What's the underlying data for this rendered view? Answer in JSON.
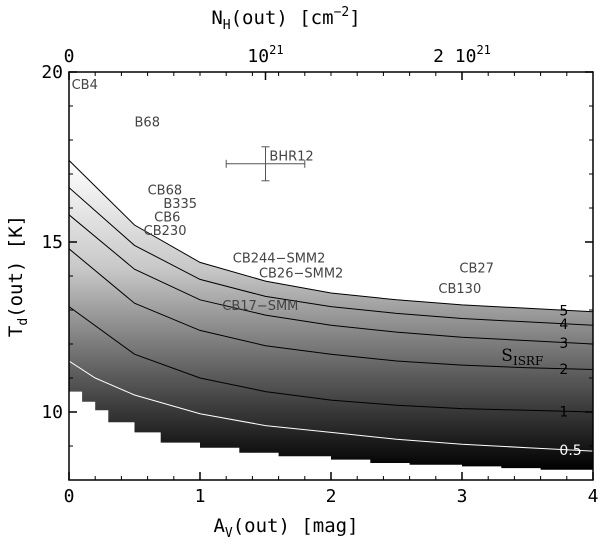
{
  "chart_data": {
    "type": "contour",
    "title": "",
    "xlabel": "A",
    "xlabel_sub": "V",
    "xlabel_rest": "(out) [mag]",
    "ylabel": "T",
    "ylabel_sub": "d",
    "ylabel_rest": "(out) [K]",
    "top_xlabel": "N",
    "top_xlabel_sub": "H",
    "top_xlabel_rest": "(out) [cm",
    "top_xlabel_sup": "−2",
    "top_xlabel_end": "]",
    "xlim": [
      0,
      4
    ],
    "ylim": [
      8,
      20
    ],
    "x_ticks": [
      {
        "value": 0,
        "label": "0"
      },
      {
        "value": 1,
        "label": "1"
      },
      {
        "value": 2,
        "label": "2"
      },
      {
        "value": 3,
        "label": "3"
      },
      {
        "value": 4,
        "label": "4"
      }
    ],
    "y_ticks": [
      {
        "value": 10,
        "label": "10"
      },
      {
        "value": 15,
        "label": "15"
      },
      {
        "value": 20,
        "label": "20"
      }
    ],
    "top_ticks": [
      {
        "value": 0,
        "label": "0"
      },
      {
        "value": 1.5,
        "label": "10",
        "sup": "21"
      },
      {
        "value": 3.0,
        "label": "2 10",
        "sup": "21"
      }
    ],
    "shaded_region": {
      "upper_boundary": {
        "x": [
          0,
          0.5,
          1,
          1.5,
          2,
          2.5,
          3,
          3.5,
          4
        ],
        "y": [
          17.4,
          15.5,
          14.4,
          13.85,
          13.5,
          13.3,
          13.15,
          13.05,
          12.95
        ]
      },
      "lower_boundary": {
        "x": [
          0,
          0.1,
          0.2,
          0.3,
          0.5,
          0.7,
          1.0,
          1.3,
          1.6,
          2.0,
          2.3,
          2.6,
          3.0,
          3.3,
          3.6,
          4.0
        ],
        "y": [
          10.9,
          10.6,
          10.3,
          10.05,
          9.7,
          9.4,
          9.1,
          8.95,
          8.8,
          8.7,
          8.6,
          8.5,
          8.45,
          8.4,
          8.35,
          8.3
        ]
      }
    },
    "contours": [
      {
        "label": "5",
        "color": "#000000",
        "x": [
          0,
          0.5,
          1,
          1.5,
          2,
          2.5,
          3,
          3.5,
          4
        ],
        "y": [
          17.4,
          15.5,
          14.4,
          13.85,
          13.5,
          13.3,
          13.15,
          13.05,
          12.95
        ]
      },
      {
        "label": "4",
        "color": "#000000",
        "x": [
          0,
          0.5,
          1,
          1.5,
          2,
          2.5,
          3,
          3.5,
          4
        ],
        "y": [
          16.6,
          14.9,
          13.9,
          13.4,
          13.1,
          12.9,
          12.75,
          12.65,
          12.55
        ]
      },
      {
        "label": "3",
        "color": "#000000",
        "x": [
          0,
          0.5,
          1,
          1.5,
          2,
          2.5,
          3,
          3.5,
          4
        ],
        "y": [
          15.8,
          14.2,
          13.3,
          12.85,
          12.55,
          12.35,
          12.2,
          12.1,
          12.0
        ]
      },
      {
        "label": "2",
        "color": "#000000",
        "x": [
          0,
          0.5,
          1,
          1.5,
          2,
          2.5,
          3,
          3.5,
          4
        ],
        "y": [
          14.8,
          13.2,
          12.4,
          11.95,
          11.7,
          11.5,
          11.38,
          11.3,
          11.25
        ]
      },
      {
        "label": "1",
        "color": "#000000",
        "x": [
          0,
          0.5,
          1,
          1.5,
          2,
          2.5,
          3,
          3.5,
          4
        ],
        "y": [
          13.1,
          11.7,
          11.0,
          10.6,
          10.35,
          10.2,
          10.1,
          10.05,
          10.0
        ]
      },
      {
        "label": "0.5",
        "color": "#ffffff",
        "x": [
          0,
          0.2,
          0.5,
          1,
          1.5,
          2,
          2.5,
          3,
          3.5,
          4
        ],
        "y": [
          11.5,
          11.0,
          10.5,
          9.95,
          9.6,
          9.4,
          9.2,
          9.05,
          8.95,
          8.85
        ]
      }
    ],
    "contour_label_x": 3.82,
    "sisrf_label": {
      "main": "S",
      "sub": "ISRF",
      "x": 3.3,
      "y": 11.5
    },
    "sources": [
      {
        "name": "CB4",
        "x": 0.02,
        "y": 19.5
      },
      {
        "name": "B68",
        "x": 0.5,
        "y": 18.4
      },
      {
        "name": "BHR12",
        "x": 1.53,
        "y": 17.4
      },
      {
        "name": "CB68",
        "x": 0.6,
        "y": 16.4
      },
      {
        "name": "B335",
        "x": 0.72,
        "y": 16.0
      },
      {
        "name": "CB6",
        "x": 0.65,
        "y": 15.6
      },
      {
        "name": "CB230",
        "x": 0.57,
        "y": 15.2
      },
      {
        "name": "CB244−SMM2",
        "x": 1.25,
        "y": 14.4
      },
      {
        "name": "CB26−SMM2",
        "x": 1.45,
        "y": 13.95
      },
      {
        "name": "CB27",
        "x": 2.98,
        "y": 14.1
      },
      {
        "name": "CB130",
        "x": 2.82,
        "y": 13.5
      },
      {
        "name": "CB17−SMM",
        "x": 1.17,
        "y": 13.0
      }
    ],
    "errorbar": {
      "x": 1.5,
      "y": 17.3,
      "xerr": 0.3,
      "yerr": 0.5
    }
  }
}
